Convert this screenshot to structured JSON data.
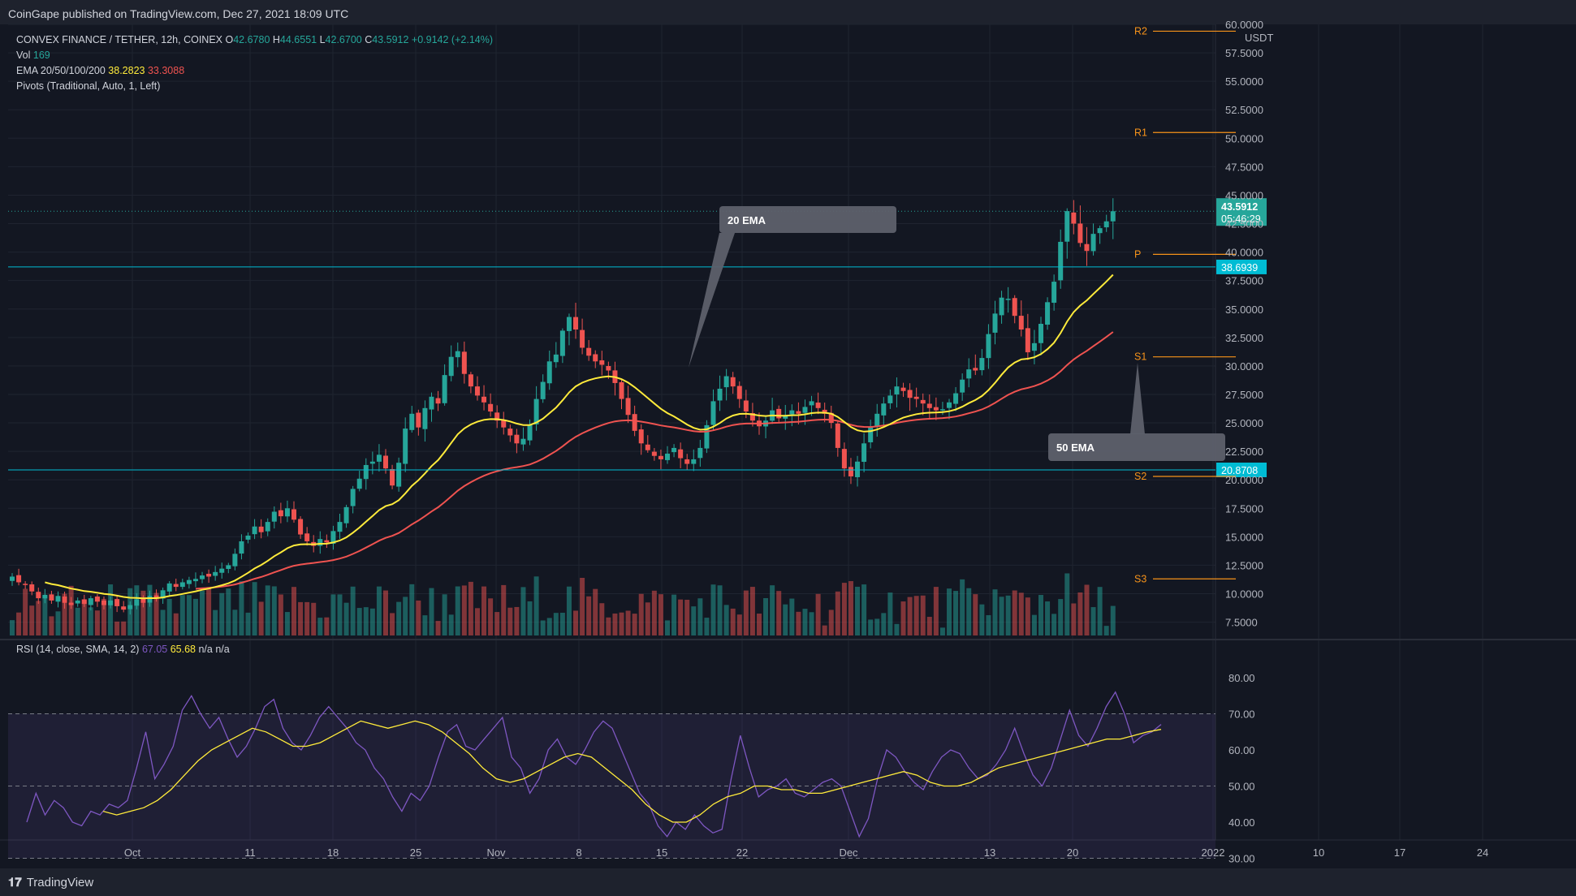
{
  "header": {
    "published": "CoinGape published on TradingView.com, Dec 27, 2021 18:09 UTC"
  },
  "footer": {
    "logo_mark": "𝟏𝟕",
    "logo_text": "TradingView"
  },
  "legend": {
    "symbol": "CONVEX FINANCE / TETHER, 12h, COINEX",
    "o_label": "O",
    "o_value": "42.6780",
    "h_label": "H",
    "h_value": "44.6551",
    "l_label": "L",
    "l_value": "42.6700",
    "c_label": "C",
    "c_value": "43.5912",
    "change": "+0.9142 (+2.14%)",
    "vol_label": "Vol",
    "vol_value": "169",
    "ema_label": "EMA 20/50/100/200",
    "ema20_value": "38.2823",
    "ema50_value": "33.3088",
    "pivots_label": "Pivots (Traditional, Auto, 1, Left)"
  },
  "rsi_legend": {
    "label": "RSI (14, close, SMA, 14, 2)",
    "rsi_value": "67.05",
    "sma_value": "65.68",
    "na": "n/a n/a"
  },
  "colors": {
    "background": "#131722",
    "up": "#26a69a",
    "down": "#ef5350",
    "ema20": "#ffeb3b",
    "ema50": "#ef5350",
    "rsi": "#7e57c2",
    "rsi_ma": "#ffeb3b",
    "pivot": "#f7931a",
    "hline": "#00bcd4",
    "callout": "#5d606b"
  },
  "chart_data": [
    {
      "type": "candlestick",
      "title": "CONVEX FINANCE / TETHER, 12h, COINEX",
      "unit": "USDT",
      "ylim": [
        6.5,
        60.0
      ],
      "y_ticks": [
        "60.0000",
        "57.5000",
        "55.0000",
        "52.5000",
        "50.0000",
        "47.5000",
        "45.0000",
        "42.5000",
        "40.0000",
        "37.5000",
        "35.0000",
        "32.5000",
        "30.0000",
        "27.5000",
        "25.0000",
        "22.5000",
        "20.0000",
        "17.5000",
        "15.0000",
        "12.5000",
        "10.0000",
        "7.5000"
      ],
      "x_ticks": [
        "Oct",
        "11",
        "18",
        "25",
        "Nov",
        "8",
        "15",
        "22",
        "Dec",
        "13",
        "20",
        "2022",
        "10",
        "17",
        "24"
      ],
      "current_price": "43.5912",
      "countdown": "05:46:29",
      "horizontal_levels": [
        {
          "value": 38.6939,
          "label": "38.6939"
        },
        {
          "value": 20.8708,
          "label": "20.8708"
        }
      ],
      "pivots": [
        {
          "label": "R2",
          "value": 59.4
        },
        {
          "label": "R1",
          "value": 50.5
        },
        {
          "label": "P",
          "value": 39.8
        },
        {
          "label": "S1",
          "value": 30.8
        },
        {
          "label": "S2",
          "value": 20.3
        },
        {
          "label": "S3",
          "value": 11.3
        }
      ],
      "annotations": [
        {
          "text": "20 EMA"
        },
        {
          "text": "50 EMA"
        }
      ],
      "closes": [
        11.5,
        11.0,
        10.8,
        10.2,
        9.6,
        9.9,
        9.4,
        9.8,
        9.2,
        9.0,
        9.4,
        9.1,
        9.6,
        9.3,
        9.0,
        9.4,
        8.9,
        8.6,
        9.0,
        9.5,
        9.2,
        9.8,
        9.6,
        10.3,
        10.9,
        10.6,
        11.0,
        11.2,
        11.3,
        11.6,
        11.5,
        11.9,
        12.2,
        12.5,
        13.5,
        14.6,
        15.1,
        15.9,
        15.4,
        16.3,
        17.2,
        16.8,
        17.5,
        16.5,
        15.2,
        14.6,
        14.2,
        14.8,
        14.5,
        15.5,
        16.3,
        17.6,
        19.2,
        20.1,
        21.3,
        21.6,
        22.2,
        21.0,
        19.5,
        21.5,
        24.5,
        25.8,
        24.6,
        26.3,
        27.3,
        26.7,
        29.2,
        30.8,
        31.3,
        29.3,
        28.2,
        27.4,
        26.8,
        26.0,
        25.2,
        24.6,
        23.9,
        23.2,
        23.6,
        24.8,
        27.1,
        28.6,
        30.4,
        31.0,
        33.1,
        34.3,
        33.2,
        31.6,
        30.9,
        30.4,
        30.1,
        29.6,
        28.5,
        27.1,
        25.7,
        24.3,
        23.2,
        22.6,
        22.1,
        21.8,
        22.3,
        22.8,
        21.9,
        21.4,
        21.8,
        22.8,
        24.8,
        26.9,
        28.0,
        29.1,
        28.2,
        27.1,
        26.0,
        25.2,
        24.7,
        25.2,
        26.1,
        25.4,
        25.6,
        26.1,
        25.8,
        26.4,
        26.9,
        26.3,
        25.8,
        25.0,
        22.8,
        21.0,
        20.3,
        21.6,
        23.2,
        24.6,
        25.8,
        26.7,
        27.4,
        28.2,
        27.8,
        27.2,
        27.1,
        26.7,
        26.3,
        26.1,
        26.2,
        26.8,
        27.6,
        28.8,
        29.7,
        29.6,
        30.7,
        32.8,
        34.6,
        36.0,
        35.9,
        34.4,
        33.2,
        31.2,
        32.0,
        33.7,
        35.6,
        37.4,
        40.9,
        43.6,
        42.5,
        40.8,
        40.1,
        41.6,
        42.1,
        42.7,
        43.59
      ],
      "volume_scale": "Vol 169"
    },
    {
      "type": "line",
      "title": "RSI (14, close, SMA, 14, 2)",
      "ylim": [
        27.5,
        82.0
      ],
      "y_ticks": [
        "80.00",
        "70.00",
        "60.00",
        "50.00",
        "40.00",
        "30.00"
      ],
      "bands": [
        70,
        50,
        30
      ],
      "series": [
        {
          "name": "RSI",
          "values": [
            40,
            48,
            42,
            46,
            44,
            40,
            39,
            43,
            42,
            45,
            44,
            46,
            55,
            65,
            52,
            56,
            61,
            71,
            75,
            70,
            66,
            69,
            63,
            58,
            61,
            66,
            72,
            74,
            66,
            62,
            60,
            64,
            69,
            72,
            69,
            66,
            62,
            60,
            55,
            52,
            47,
            43,
            48,
            46,
            50,
            58,
            65,
            67,
            61,
            60,
            63,
            66,
            69,
            58,
            55,
            48,
            52,
            60,
            63,
            58,
            56,
            60,
            65,
            68,
            66,
            60,
            54,
            48,
            45,
            39,
            36,
            40,
            38,
            42,
            39,
            37,
            38,
            52,
            64,
            55,
            47,
            49,
            50,
            52,
            48,
            47,
            49,
            51,
            52,
            50,
            43,
            36,
            41,
            52,
            60,
            58,
            54,
            51,
            49,
            54,
            58,
            60,
            59,
            55,
            52,
            53,
            56,
            60,
            66,
            59,
            53,
            50,
            55,
            63,
            71,
            64,
            61,
            66,
            72,
            76,
            70,
            62,
            64,
            65,
            67.05
          ]
        },
        {
          "name": "RSI-based MA",
          "values": [
            43,
            42,
            43,
            44,
            46,
            49,
            53,
            57,
            60,
            62,
            64,
            66,
            65,
            63,
            61,
            61,
            62,
            64,
            66,
            68,
            67,
            66,
            67,
            68,
            67,
            65,
            62,
            59,
            55,
            52,
            51,
            52,
            54,
            56,
            58,
            59,
            58,
            55,
            52,
            49,
            45,
            42,
            40,
            40,
            42,
            45,
            47,
            48,
            50,
            50,
            49,
            49,
            48,
            48,
            49,
            50,
            51,
            52,
            53,
            54,
            53,
            51,
            50,
            50,
            51,
            53,
            55,
            56,
            57,
            58,
            59,
            60,
            61,
            62,
            63,
            63,
            64,
            65,
            65.68
          ]
        }
      ]
    }
  ]
}
